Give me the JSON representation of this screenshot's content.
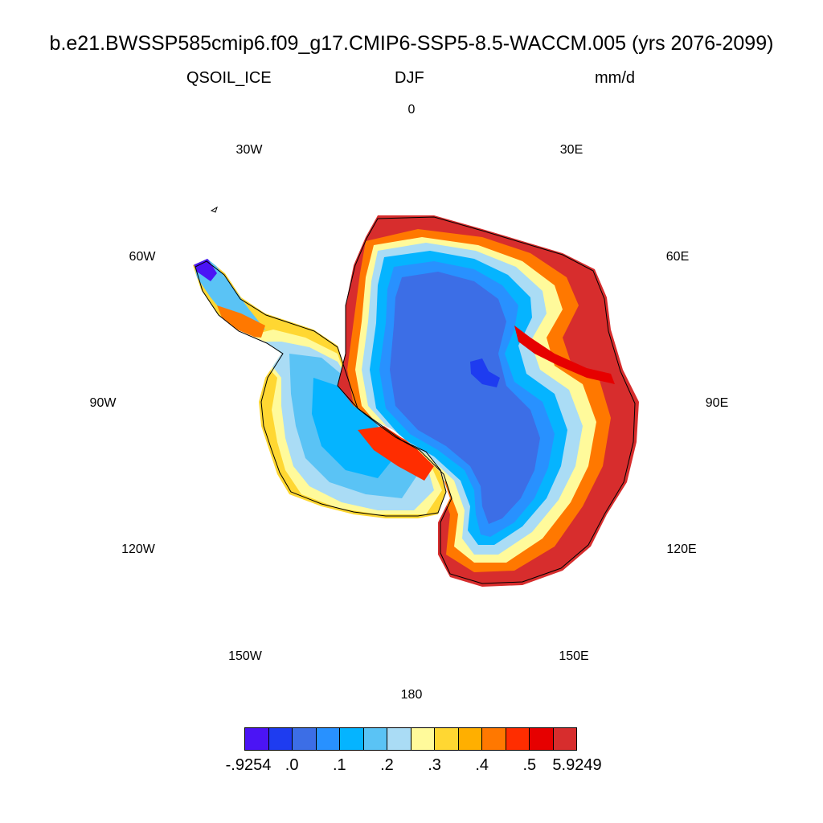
{
  "title": "b.e21.BWSSP585cmip6.f09_g17.CMIP6-SSP5-8.5-WACCM.005 (yrs 2076-2099)",
  "variable": "QSOIL_ICE",
  "season": "DJF",
  "units": "mm/d",
  "longitude_labels": [
    "0",
    "30E",
    "60E",
    "90E",
    "120E",
    "150E",
    "180",
    "150W",
    "120W",
    "90W",
    "60W",
    "30W"
  ],
  "colorbar": {
    "colors": [
      "#4b14f5",
      "#1e3cf0",
      "#3c6ee6",
      "#2891ff",
      "#05b4ff",
      "#5ac3f5",
      "#aadcf5",
      "#fffa9b",
      "#ffd732",
      "#ffaf00",
      "#ff7800",
      "#ff2d00",
      "#e60000",
      "#d72d2d"
    ],
    "labels": [
      "-.9254",
      ".0",
      ".1",
      ".2",
      ".3",
      ".4",
      ".5",
      "5.9249"
    ]
  },
  "map_data": {
    "projection": "south polar stereographic",
    "region": "Antarctica",
    "field": "QSOIL_ICE DJF mean",
    "pattern": "lowest values over the East Antarctic interior; highest values along the coastal margin of East Antarctica; intermediate values over West Antarctica and the ice shelves"
  }
}
